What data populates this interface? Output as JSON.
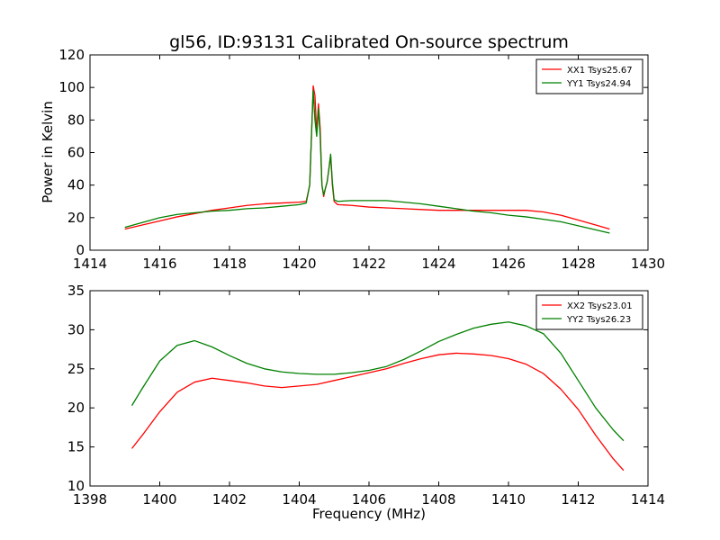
{
  "chart_data": [
    {
      "type": "line",
      "title": "gl56, ID:93131 Calibrated On-source spectrum",
      "xlabel": "",
      "ylabel": "Power in Kelvin",
      "xlim": [
        1414,
        1430
      ],
      "ylim": [
        0,
        120
      ],
      "xticks": [
        "1414",
        "1416",
        "1418",
        "1420",
        "1422",
        "1424",
        "1426",
        "1428",
        "1430"
      ],
      "yticks": [
        "0",
        "20",
        "40",
        "60",
        "80",
        "100",
        "120"
      ],
      "legend_position": "top-right",
      "grid": false,
      "series": [
        {
          "name": "XX1 Tsys25.67",
          "color": "#ff0000",
          "x": [
            1415.0,
            1415.5,
            1416.0,
            1416.5,
            1417.0,
            1417.5,
            1418.0,
            1418.5,
            1419.0,
            1419.5,
            1420.0,
            1420.2,
            1420.3,
            1420.35,
            1420.4,
            1420.45,
            1420.5,
            1420.55,
            1420.6,
            1420.65,
            1420.7,
            1420.75,
            1420.8,
            1420.85,
            1420.9,
            1420.95,
            1421.0,
            1421.1,
            1421.5,
            1422.0,
            1422.5,
            1423.0,
            1423.5,
            1424.0,
            1424.5,
            1425.0,
            1425.5,
            1426.0,
            1426.5,
            1427.0,
            1427.5,
            1428.0,
            1428.5,
            1428.9
          ],
          "values": [
            13,
            15.5,
            18,
            20.5,
            22.5,
            24.5,
            26,
            27.5,
            28.5,
            29,
            29.5,
            30,
            40,
            70,
            101,
            95,
            72,
            90,
            75,
            40,
            33,
            38,
            42,
            50,
            58,
            40,
            30,
            28,
            27.5,
            26.5,
            26,
            25.5,
            25,
            24.5,
            24.5,
            24.5,
            24.5,
            24.5,
            24.5,
            23.5,
            21.5,
            18.5,
            15.5,
            13
          ]
        },
        {
          "name": "YY1 Tsys24.94",
          "color": "#008000",
          "x": [
            1415.0,
            1415.5,
            1416.0,
            1416.5,
            1417.0,
            1417.5,
            1418.0,
            1418.5,
            1419.0,
            1419.5,
            1420.0,
            1420.2,
            1420.3,
            1420.35,
            1420.4,
            1420.45,
            1420.5,
            1420.55,
            1420.6,
            1420.65,
            1420.7,
            1420.75,
            1420.8,
            1420.85,
            1420.9,
            1420.95,
            1421.0,
            1421.1,
            1421.5,
            1422.0,
            1422.5,
            1423.0,
            1423.5,
            1424.0,
            1424.5,
            1425.0,
            1425.5,
            1426.0,
            1426.5,
            1427.0,
            1427.5,
            1428.0,
            1428.5,
            1428.9
          ],
          "values": [
            14,
            17,
            20,
            22,
            23,
            24,
            24.5,
            25.5,
            26,
            27,
            28,
            29,
            40,
            70,
            98,
            80,
            70,
            87,
            70,
            40,
            34,
            38,
            42,
            50,
            59,
            42,
            31,
            30,
            30.5,
            30.5,
            30.5,
            29.5,
            28.5,
            27,
            25.5,
            24,
            23,
            21.5,
            20.5,
            19,
            17.5,
            15,
            12.5,
            10.5
          ]
        }
      ]
    },
    {
      "type": "line",
      "title": "",
      "xlabel": "Frequency (MHz)",
      "ylabel": "",
      "xlim": [
        1398,
        1414
      ],
      "ylim": [
        10,
        35
      ],
      "xticks": [
        "1398",
        "1400",
        "1402",
        "1404",
        "1406",
        "1408",
        "1410",
        "1412",
        "1414"
      ],
      "yticks": [
        "10",
        "15",
        "20",
        "25",
        "30",
        "35"
      ],
      "legend_position": "top-right",
      "grid": false,
      "series": [
        {
          "name": "XX2 Tsys23.01",
          "color": "#ff0000",
          "x": [
            1399.2,
            1399.5,
            1400.0,
            1400.5,
            1401.0,
            1401.5,
            1402.0,
            1402.5,
            1403.0,
            1403.5,
            1404.0,
            1404.5,
            1405.0,
            1405.5,
            1406.0,
            1406.5,
            1407.0,
            1407.5,
            1408.0,
            1408.5,
            1409.0,
            1409.5,
            1410.0,
            1410.5,
            1411.0,
            1411.5,
            1412.0,
            1412.5,
            1413.0,
            1413.3
          ],
          "values": [
            14.8,
            16.5,
            19.5,
            22,
            23.3,
            23.8,
            23.5,
            23.2,
            22.8,
            22.6,
            22.8,
            23,
            23.5,
            24,
            24.5,
            25,
            25.7,
            26.3,
            26.8,
            27,
            26.9,
            26.7,
            26.3,
            25.6,
            24.4,
            22.4,
            19.8,
            16.5,
            13.5,
            12
          ]
        },
        {
          "name": "YY2 Tsys26.23",
          "color": "#008000",
          "x": [
            1399.2,
            1399.5,
            1400.0,
            1400.5,
            1401.0,
            1401.5,
            1402.0,
            1402.5,
            1403.0,
            1403.5,
            1404.0,
            1404.5,
            1405.0,
            1405.5,
            1406.0,
            1406.5,
            1407.0,
            1407.5,
            1408.0,
            1408.5,
            1409.0,
            1409.5,
            1410.0,
            1410.5,
            1411.0,
            1411.5,
            1412.0,
            1412.5,
            1413.0,
            1413.3
          ],
          "values": [
            20.3,
            22.5,
            26,
            28,
            28.6,
            27.8,
            26.7,
            25.7,
            25,
            24.6,
            24.4,
            24.3,
            24.3,
            24.5,
            24.8,
            25.3,
            26.2,
            27.3,
            28.5,
            29.4,
            30.2,
            30.7,
            31,
            30.5,
            29.5,
            27,
            23.5,
            20,
            17.2,
            15.8
          ]
        }
      ]
    }
  ]
}
